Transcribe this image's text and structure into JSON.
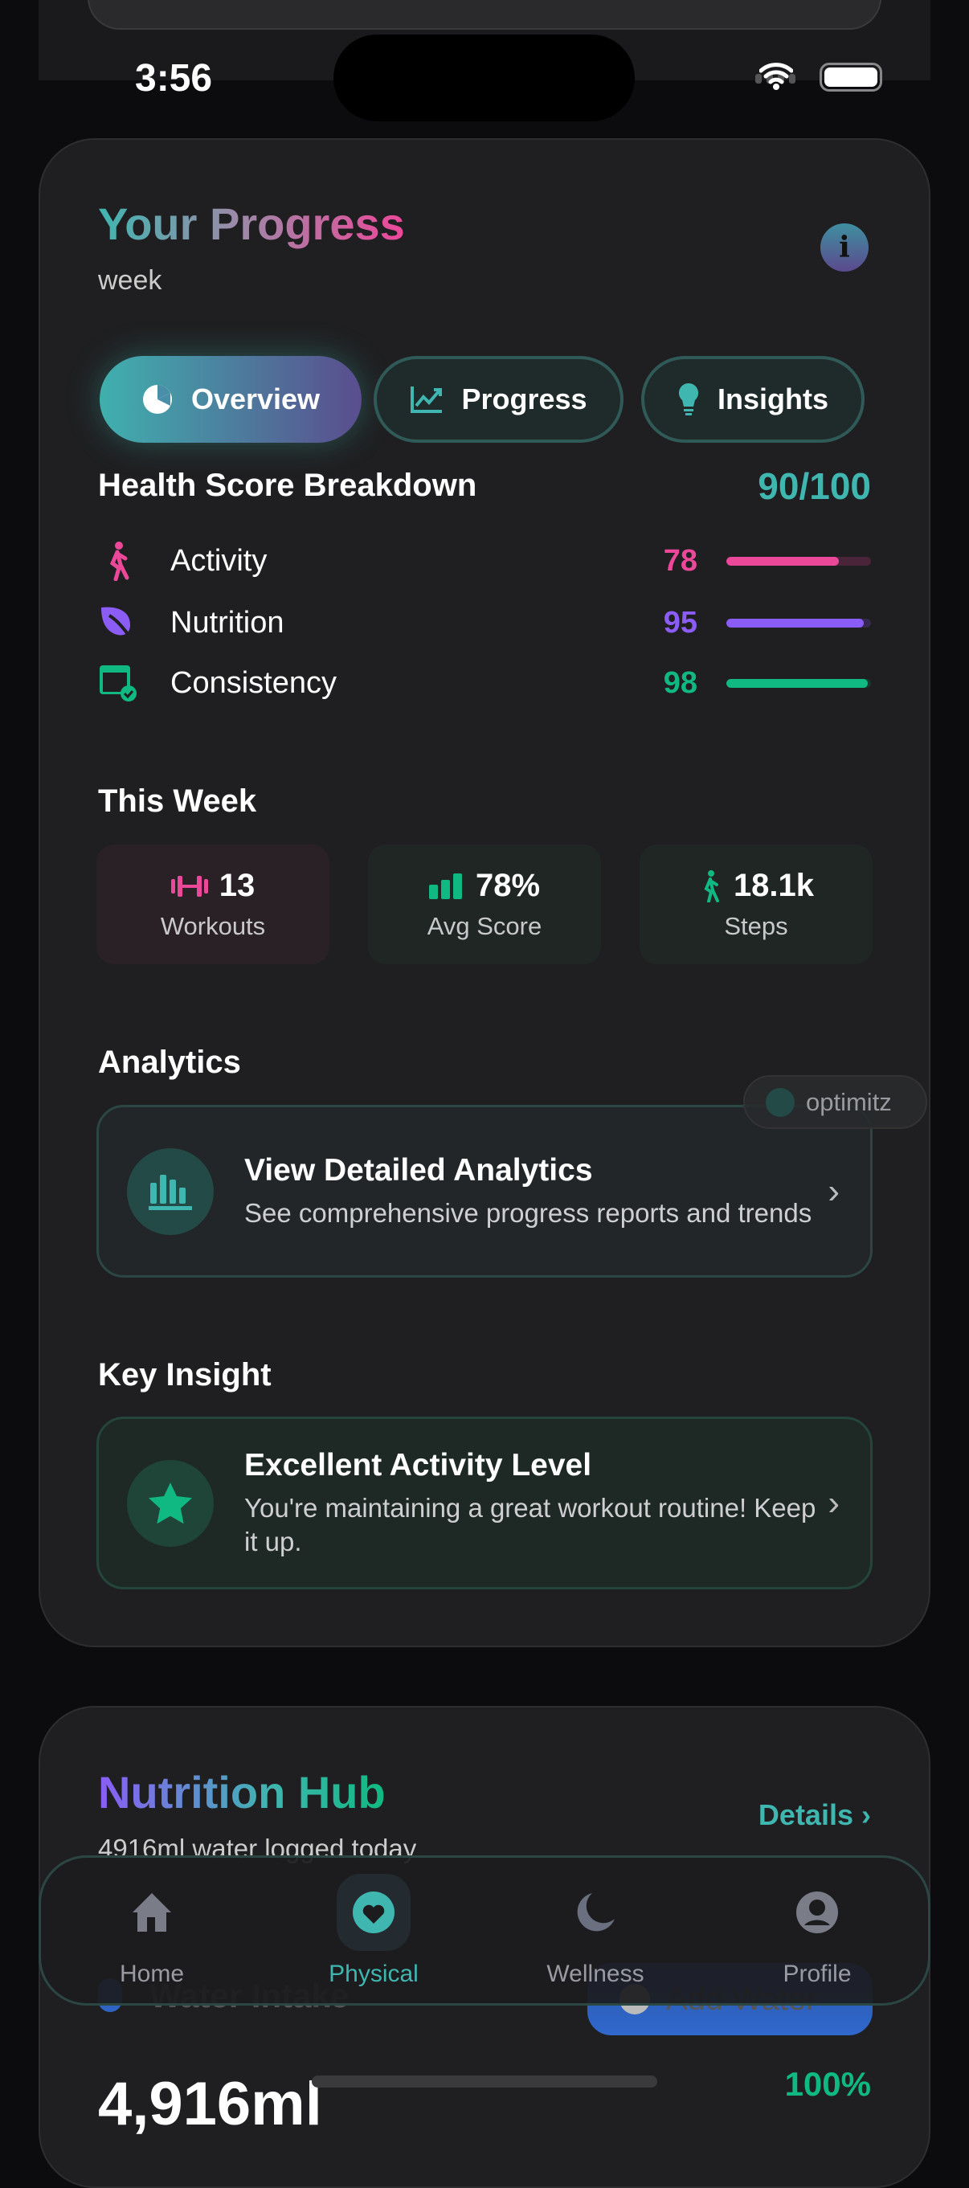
{
  "status_bar": {
    "time": "3:56"
  },
  "progress": {
    "title": "Your Progress",
    "period": "week",
    "tabs": [
      {
        "label": "Overview",
        "icon": "pie-chart-icon",
        "active": true
      },
      {
        "label": "Progress",
        "icon": "trend-chart-icon"
      },
      {
        "label": "Insights",
        "icon": "lightbulb-icon"
      }
    ],
    "breakdown": {
      "title": "Health Score Breakdown",
      "score": "90/100",
      "items": [
        {
          "label": "Activity",
          "value": "78",
          "percent": 78,
          "color": "#ec4899",
          "icon": "walking-icon"
        },
        {
          "label": "Nutrition",
          "value": "95",
          "percent": 95,
          "color": "#8b5cf6",
          "icon": "leaf-icon"
        },
        {
          "label": "Consistency",
          "value": "98",
          "percent": 98,
          "color": "#10b981",
          "icon": "calendar-check-icon"
        }
      ]
    },
    "this_week": {
      "title": "This Week",
      "stats": [
        {
          "value": "13",
          "label": "Workouts",
          "icon": "dumbbell-icon"
        },
        {
          "value": "78%",
          "label": "Avg Score",
          "icon": "bar-chart-icon"
        },
        {
          "value": "18.1k",
          "label": "Steps",
          "icon": "walking-icon"
        }
      ]
    },
    "analytics": {
      "title": "Analytics",
      "card_title": "View Detailed Analytics",
      "card_sub": "See comprehensive progress reports and trends"
    },
    "key_insight": {
      "title": "Key Insight",
      "card_title": "Excellent Activity Level",
      "card_sub": "You're maintaining a great workout routine! Keep it up."
    }
  },
  "badge": {
    "label": "optimitz"
  },
  "nutrition": {
    "title": "Nutrition Hub",
    "details": "Details",
    "subtitle": "4916ml water logged today",
    "water_label": "Water Intake",
    "add_water": "Add Water",
    "amount": "4,916ml",
    "percent": "100%"
  },
  "nav": [
    {
      "label": "Home",
      "icon": "home-icon"
    },
    {
      "label": "Physical",
      "icon": "heart-icon",
      "active": true
    },
    {
      "label": "Wellness",
      "icon": "moon-icon"
    },
    {
      "label": "Profile",
      "icon": "profile-icon"
    }
  ],
  "colors": {
    "accent": "#3fb6b0",
    "pink": "#ec4899",
    "purple": "#8b5cf6",
    "green": "#10b981",
    "blue": "#2f64c4"
  }
}
